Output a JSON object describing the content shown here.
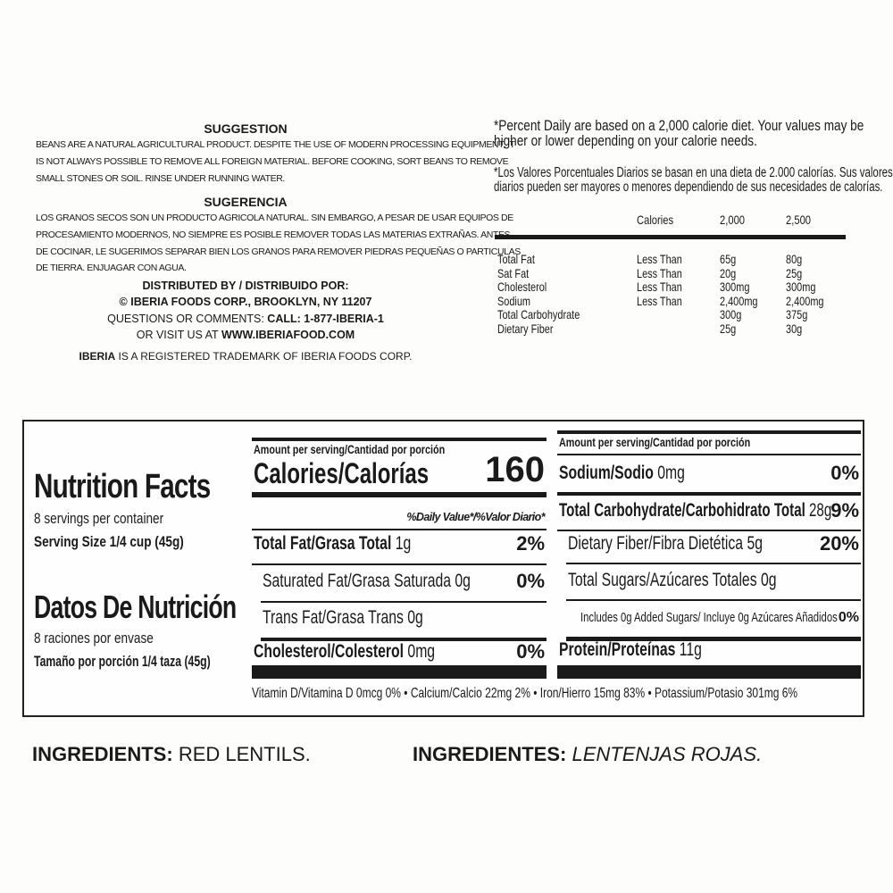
{
  "suggestion": {
    "title_en": "SUGGESTION",
    "lines_en": [
      "BEANS ARE A NATURAL AGRICULTURAL PRODUCT. DESPITE THE USE OF MODERN PROCESSING EQUIPMENT, IT",
      "IS NOT ALWAYS POSSIBLE TO REMOVE ALL FOREIGN MATERIAL. BEFORE COOKING, SORT BEANS TO REMOVE",
      "SMALL STONES OR SOIL. RINSE UNDER RUNNING WATER."
    ],
    "title_es": "SUGERENCIA",
    "lines_es": [
      "LOS GRANOS SECOS SON UN PRODUCTO AGRICOLA NATURAL. SIN EMBARGO, A PESAR DE USAR EQUIPOS DE",
      "PROCESAMIENTO MODERNOS, NO SIEMPRE ES POSIBLE REMOVER TODAS LAS MATERIAS EXTRAÑAS. ANTES",
      "DE COCINAR, LE SUGERIMOS SEPARAR BIEN LOS GRANOS PARA REMOVER PIEDRAS PEQUEÑAS O PARTICULAS",
      "DE TIERRA. ENJUAGAR CON AGUA."
    ],
    "distributed": "DISTRIBUTED BY / DISTRIBUIDO POR:",
    "company": "© IBERIA FOODS CORP., BROOKLYN, NY 11207",
    "questions": "QUESTIONS OR COMMENTS:",
    "call": "CALL: 1-877-IBERIA-1",
    "visit": "OR VISIT US AT",
    "website": "WWW.IBERIAFOOD.COM",
    "brand": "IBERIA",
    "trademark": "IS A REGISTERED TRADEMARK OF IBERIA FOODS CORP."
  },
  "footnote": {
    "en": [
      "*Percent Daily are based on a 2,000 calorie diet. Your values may be",
      "higher or lower depending on your calorie needs."
    ],
    "es": [
      "*Los Valores Porcentuales Diarios se basan en una dieta de 2.000 calorías. Sus valores",
      "diarios pueden ser mayores o menores dependiendo de sus necesidades de calorías."
    ],
    "header": [
      "Calories",
      "2,000",
      "2,500"
    ],
    "rows": [
      [
        "Total Fat",
        "Less Than",
        "65g",
        "80g"
      ],
      [
        "Sat Fat",
        "Less Than",
        "20g",
        "25g"
      ],
      [
        "Cholesterol",
        "Less Than",
        "300mg",
        "300mg"
      ],
      [
        "Sodium",
        "Less Than",
        "2,400mg",
        "2,400mg"
      ],
      [
        "Total Carbohydrate",
        "",
        "300g",
        "375g"
      ],
      [
        "Dietary Fiber",
        "",
        "25g",
        "30g"
      ]
    ]
  },
  "facts": {
    "title_en": "Nutrition Facts",
    "servings_en": "8 servings per container",
    "size_en": "Serving Size 1/4 cup (45g)",
    "title_es": "Datos De Nutrición",
    "servings_es": "8 raciones por envase",
    "size_es": "Tamaño por porción 1/4 taza (45g)",
    "amount": "Amount per serving/Cantidad por porción",
    "calories_label": "Calories/Calorías",
    "calories": "160",
    "dv": "%Daily Value*/%Valor Diario*",
    "left": [
      {
        "label": "Total Fat/Grasa Total",
        "value": "1g",
        "pct": "2%"
      },
      {
        "label": "Saturated Fat/Grasa Saturada",
        "value": "0g",
        "pct": "0%"
      },
      {
        "label": "Trans Fat/Grasa Trans",
        "value": "0g",
        "pct": ""
      },
      {
        "label": "Cholesterol/Colesterol",
        "value": "0mg",
        "pct": "0%"
      }
    ],
    "right": [
      {
        "label": "Sodium/Sodio",
        "value": "0mg",
        "pct": "0%"
      },
      {
        "label": "Total Carbohydrate/Carbohidrato Total",
        "value": "28g",
        "pct": "9%"
      },
      {
        "label": "Dietary Fiber/Fibra Dietética",
        "value": "5g",
        "pct": "20%"
      },
      {
        "label": "Total Sugars/Azúcares Totales",
        "value": "0g",
        "pct": ""
      },
      {
        "label": "Includes 0g Added Sugars/ Incluye 0g Azúcares Añadidos",
        "value": "",
        "pct": "0%"
      },
      {
        "label": "Protein/Proteínas",
        "value": "11g",
        "pct": ""
      }
    ],
    "vitamins": "Vitamin D/Vitamina D 0mcg 0% • Calcium/Calcio  22mg 2% • Iron/Hierro 15mg 83% • Potassium/Potasio 301mg 6%"
  },
  "ingredients": {
    "label_en": "INGREDIENTS:",
    "value_en": "RED LENTILS.",
    "label_es": "INGREDIENTES:",
    "value_es": "LENTENJAS ROJAS."
  }
}
